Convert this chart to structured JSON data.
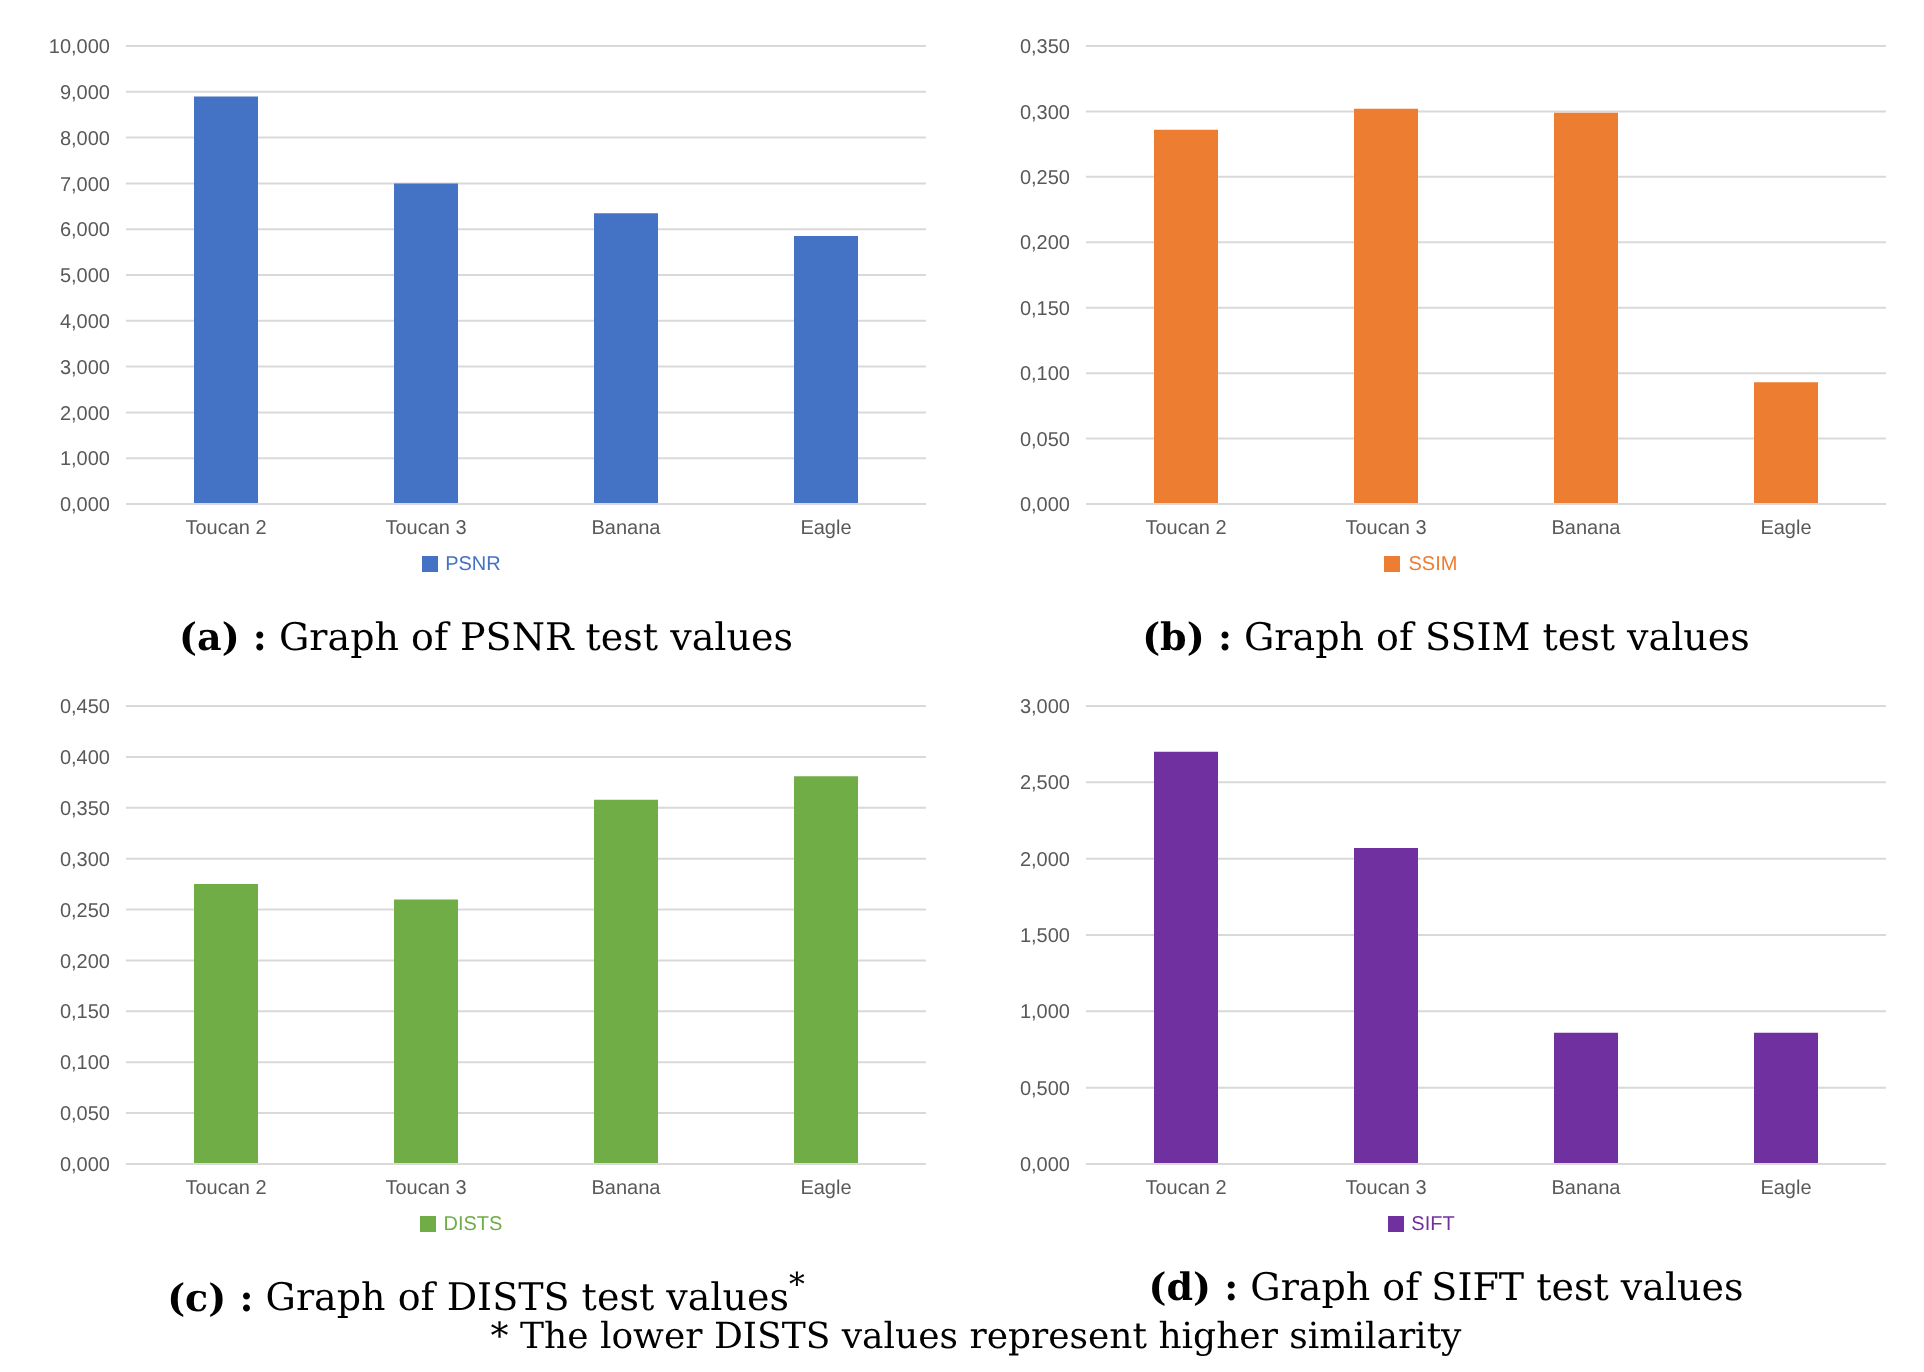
{
  "chart_data": [
    {
      "type": "bar",
      "title": "(a) : Graph of PSNR test values",
      "categories": [
        "Toucan 2",
        "Toucan 3",
        "Banana",
        "Eagle"
      ],
      "series": [
        {
          "name": "PSNR",
          "color": "#4472c4",
          "values": [
            8.9,
            7.0,
            6.35,
            5.85
          ]
        }
      ],
      "ylim": [
        0,
        10
      ],
      "yticks": [
        {
          "value": 0,
          "label": "0,000"
        },
        {
          "value": 1,
          "label": "1,000"
        },
        {
          "value": 2,
          "label": "2,000"
        },
        {
          "value": 3,
          "label": "3,000"
        },
        {
          "value": 4,
          "label": "4,000"
        },
        {
          "value": 5,
          "label": "5,000"
        },
        {
          "value": 6,
          "label": "6,000"
        },
        {
          "value": 7,
          "label": "7,000"
        },
        {
          "value": 8,
          "label": "8,000"
        },
        {
          "value": 9,
          "label": "9,000"
        },
        {
          "value": 10,
          "label": "10,000"
        }
      ],
      "grid": "y",
      "legend": "bottom"
    },
    {
      "type": "bar",
      "title": "(b) : Graph of SSIM test values",
      "categories": [
        "Toucan 2",
        "Toucan 3",
        "Banana",
        "Eagle"
      ],
      "series": [
        {
          "name": "SSIM",
          "color": "#ed7d31",
          "values": [
            0.286,
            0.302,
            0.299,
            0.093
          ]
        }
      ],
      "ylim": [
        0,
        0.35
      ],
      "yticks": [
        {
          "value": 0,
          "label": "0,000"
        },
        {
          "value": 0.05,
          "label": "0,050"
        },
        {
          "value": 0.1,
          "label": "0,100"
        },
        {
          "value": 0.15,
          "label": "0,150"
        },
        {
          "value": 0.2,
          "label": "0,200"
        },
        {
          "value": 0.25,
          "label": "0,250"
        },
        {
          "value": 0.3,
          "label": "0,300"
        },
        {
          "value": 0.35,
          "label": "0,350"
        }
      ],
      "grid": "y",
      "legend": "bottom"
    },
    {
      "type": "bar",
      "title": "(c) : Graph of DISTS test values$^{*}$",
      "categories": [
        "Toucan 2",
        "Toucan 3",
        "Banana",
        "Eagle"
      ],
      "series": [
        {
          "name": "DISTS",
          "color": "#70ad47",
          "values": [
            0.275,
            0.26,
            0.358,
            0.381
          ]
        }
      ],
      "ylim": [
        0,
        0.45
      ],
      "yticks": [
        {
          "value": 0,
          "label": "0,000"
        },
        {
          "value": 0.05,
          "label": "0,050"
        },
        {
          "value": 0.1,
          "label": "0,100"
        },
        {
          "value": 0.15,
          "label": "0,150"
        },
        {
          "value": 0.2,
          "label": "0,200"
        },
        {
          "value": 0.25,
          "label": "0,250"
        },
        {
          "value": 0.3,
          "label": "0,300"
        },
        {
          "value": 0.35,
          "label": "0,350"
        },
        {
          "value": 0.4,
          "label": "0,400"
        },
        {
          "value": 0.45,
          "label": "0,450"
        }
      ],
      "grid": "y",
      "legend": "bottom",
      "annotations": [
        "* The lower DISTS values represent higher similarity"
      ]
    },
    {
      "type": "bar",
      "title": "(d) : Graph of SIFT test values",
      "categories": [
        "Toucan 2",
        "Toucan 3",
        "Banana",
        "Eagle"
      ],
      "series": [
        {
          "name": "SIFT",
          "color": "#7030a0",
          "values": [
            2.7,
            2.07,
            0.86,
            0.86
          ]
        }
      ],
      "ylim": [
        0,
        3
      ],
      "yticks": [
        {
          "value": 0,
          "label": "0,000"
        },
        {
          "value": 0.5,
          "label": "0,500"
        },
        {
          "value": 1,
          "label": "1,000"
        },
        {
          "value": 1.5,
          "label": "1,500"
        },
        {
          "value": 2,
          "label": "2,000"
        },
        {
          "value": 2.5,
          "label": "2,500"
        },
        {
          "value": 3,
          "label": "3,000"
        }
      ],
      "grid": "y",
      "legend": "bottom"
    }
  ]
}
